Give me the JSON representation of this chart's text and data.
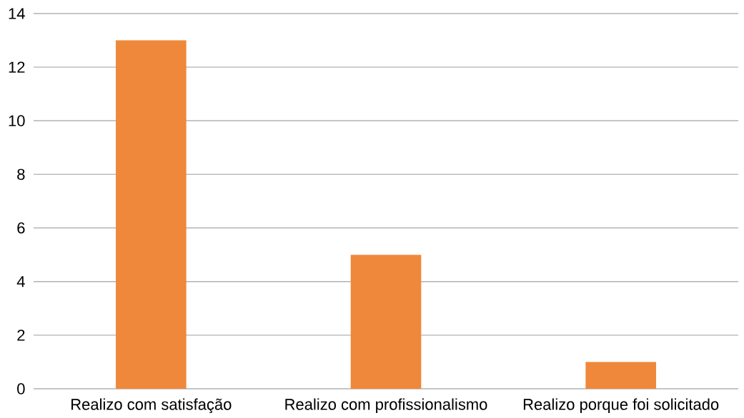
{
  "chart_data": {
    "type": "bar",
    "categories": [
      "Realizo com satisfação",
      "Realizo com profissionalismo",
      "Realizo porque foi solicitado"
    ],
    "values": [
      13,
      5,
      1
    ],
    "color": "#ef883a",
    "ylim": [
      0,
      14
    ],
    "yticks": [
      0,
      2,
      4,
      6,
      8,
      10,
      12,
      14
    ],
    "grid": "y"
  }
}
